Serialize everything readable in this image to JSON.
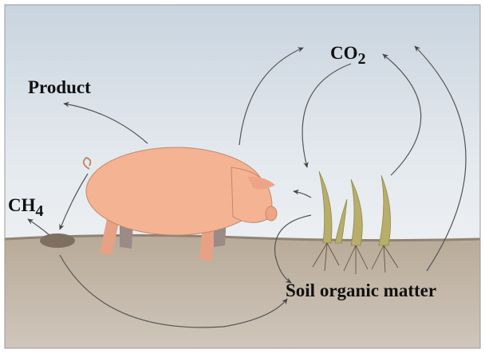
{
  "labels": {
    "product": "Product",
    "methane": {
      "text": "CH",
      "sub": "4"
    },
    "carbon_dioxide": {
      "text": "CO",
      "sub": "2"
    },
    "soil": "Soil organic matter"
  }
}
